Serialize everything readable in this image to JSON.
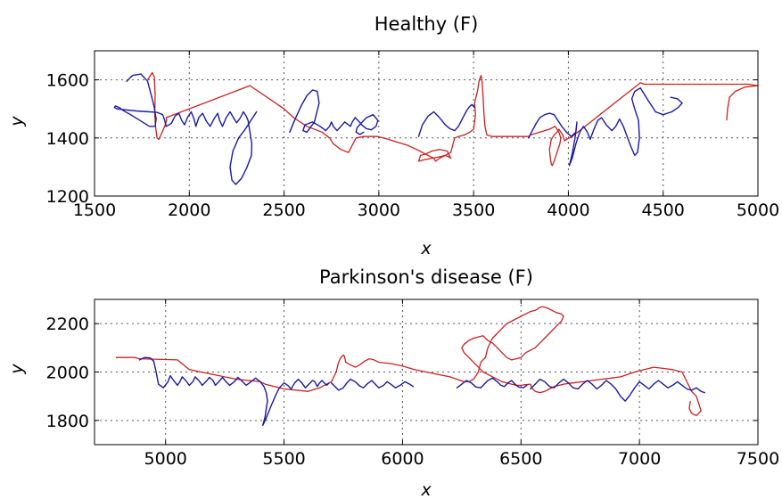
{
  "chart_data": [
    {
      "type": "line",
      "title": "Healthy (F)",
      "xlabel": "x",
      "ylabel": "y",
      "xlim": [
        1500,
        5000
      ],
      "ylim": [
        1200,
        1700
      ],
      "xticks": [
        1500,
        2000,
        2500,
        3000,
        3500,
        4000,
        4500,
        5000
      ],
      "yticks": [
        1200,
        1400,
        1600
      ],
      "grid": true,
      "series": [
        {
          "color": "#1a1aa6",
          "pen": "down",
          "x": [
            1670,
            1700,
            1745,
            1780,
            1800,
            1815,
            1825,
            1820,
            1790,
            1740,
            1690,
            1650,
            1630,
            1610,
            1605,
            1620,
            1660,
            1720,
            1790,
            1830,
            1860,
            1870,
            1878,
            1905,
            1925,
            1945,
            1960,
            1975,
            1990,
            2010,
            2025,
            2035,
            2050,
            2070,
            2090,
            2110,
            2130,
            2150,
            2160,
            2175,
            2195,
            2215,
            2235,
            2250,
            2270,
            2285,
            2300,
            2310,
            2320,
            2330,
            2328,
            2305,
            2275,
            2245,
            2225,
            2215,
            2230,
            2260,
            2290,
            2310,
            2330,
            2345,
            2355
          ],
          "y": [
            1595,
            1615,
            1620,
            1595,
            1545,
            1505,
            1465,
            1440,
            1440,
            1460,
            1480,
            1495,
            1505,
            1510,
            1505,
            1500,
            1497,
            1493,
            1490,
            1488,
            1480,
            1460,
            1440,
            1450,
            1475,
            1485,
            1460,
            1445,
            1470,
            1490,
            1465,
            1440,
            1470,
            1485,
            1458,
            1440,
            1465,
            1485,
            1460,
            1440,
            1470,
            1490,
            1468,
            1452,
            1470,
            1490,
            1475,
            1460,
            1420,
            1380,
            1340,
            1300,
            1260,
            1240,
            1255,
            1300,
            1355,
            1400,
            1425,
            1445,
            1465,
            1480,
            1490
          ]
        },
        {
          "color": "#1a1aa6",
          "pen": "down",
          "x": [
            2530,
            2555,
            2590,
            2620,
            2650,
            2675,
            2685,
            2660,
            2620,
            2600,
            2610,
            2650,
            2690,
            2720,
            2740,
            2750,
            2760,
            2780,
            2800,
            2820,
            2840,
            2850,
            2860,
            2875,
            2890,
            2910,
            2935,
            2960,
            2985,
            2995,
            2970,
            2935,
            2905,
            2885,
            2880,
            2900,
            2920
          ],
          "y": [
            1420,
            1460,
            1510,
            1545,
            1565,
            1560,
            1520,
            1455,
            1420,
            1425,
            1445,
            1455,
            1440,
            1425,
            1440,
            1455,
            1440,
            1425,
            1440,
            1455,
            1445,
            1440,
            1455,
            1470,
            1460,
            1445,
            1432,
            1428,
            1440,
            1460,
            1480,
            1470,
            1450,
            1435,
            1420,
            1412,
            1420
          ]
        },
        {
          "color": "#1a1aa6",
          "pen": "down",
          "x": [
            3210,
            3230,
            3260,
            3290,
            3320,
            3350,
            3375,
            3400,
            3420,
            3440,
            3460,
            3475,
            3490,
            3505
          ],
          "y": [
            1405,
            1445,
            1475,
            1490,
            1470,
            1445,
            1432,
            1425,
            1440,
            1465,
            1490,
            1505,
            1515,
            1505
          ]
        },
        {
          "color": "#1a1aa6",
          "pen": "down",
          "x": [
            3790,
            3810,
            3830,
            3850,
            3875,
            3900,
            3925,
            3945,
            3965,
            3990,
            4015,
            4040,
            4045,
            4035,
            4020,
            4005,
            4020,
            4040,
            4060,
            4080,
            4100,
            4115,
            4135,
            4155,
            4175,
            4200,
            4230,
            4250,
            4270,
            4290,
            4310,
            4330,
            4350,
            4365,
            4375,
            4370,
            4350,
            4335,
            4350,
            4380,
            4420,
            4460,
            4500,
            4545,
            4580,
            4600,
            4575,
            4540
          ],
          "y": [
            1400,
            1425,
            1450,
            1470,
            1480,
            1485,
            1480,
            1460,
            1440,
            1420,
            1405,
            1420,
            1455,
            1400,
            1345,
            1305,
            1330,
            1380,
            1420,
            1440,
            1420,
            1395,
            1430,
            1460,
            1470,
            1445,
            1425,
            1440,
            1465,
            1440,
            1405,
            1370,
            1340,
            1350,
            1400,
            1460,
            1500,
            1535,
            1560,
            1572,
            1530,
            1490,
            1480,
            1490,
            1505,
            1520,
            1535,
            1540
          ]
        }
      ]
    },
    {
      "type": "line",
      "title": "Parkinson's disease (F)",
      "xlabel": "x",
      "ylabel": "y",
      "xlim": [
        4700,
        7500
      ],
      "ylim": [
        1700,
        2300
      ],
      "xticks": [
        5000,
        5500,
        6000,
        6500,
        7000,
        7500
      ],
      "yticks": [
        1800,
        2000,
        2200
      ],
      "grid": true,
      "series": [
        {
          "color": "#1a1aa6",
          "pen": "down",
          "x": [
            4890,
            4910,
            4935,
            4950,
            4960,
            4970,
            4990,
            5010,
            5020,
            5030,
            5050,
            5060,
            5070,
            5085,
            5100,
            5115,
            5125,
            5140,
            5155,
            5170,
            5185,
            5200,
            5210,
            5225,
            5240,
            5255,
            5270,
            5290,
            5305,
            5320,
            5340,
            5360,
            5380,
            5400,
            5415,
            5425,
            5430,
            5425,
            5420,
            5410,
            5425,
            5445,
            5465,
            5480,
            5500,
            5515,
            5530,
            5545,
            5560,
            5575,
            5590,
            5605,
            5620,
            5630,
            5640,
            5650,
            5660,
            5670,
            5680,
            5690
          ],
          "y": [
            2050,
            2060,
            2058,
            2045,
            2000,
            1950,
            1935,
            1960,
            1985,
            1970,
            1945,
            1960,
            1980,
            1965,
            1945,
            1960,
            1980,
            1965,
            1945,
            1960,
            1978,
            1965,
            1945,
            1960,
            1978,
            1960,
            1945,
            1960,
            1978,
            1965,
            1945,
            1960,
            1975,
            1960,
            1940,
            1915,
            1880,
            1850,
            1815,
            1780,
            1810,
            1860,
            1905,
            1935,
            1955,
            1945,
            1930,
            1955,
            1970,
            1955,
            1935,
            1950,
            1965,
            1960,
            1940,
            1955,
            1965,
            1955,
            1945,
            1955
          ]
        },
        {
          "color": "#1a1aa6",
          "pen": "down",
          "x": [
            5700,
            5715,
            5730,
            5750,
            5765,
            5780,
            5800,
            5820,
            5835,
            5850,
            5870,
            5885,
            5900,
            5920,
            5935,
            5950,
            5970,
            5990,
            6010,
            6030,
            6045
          ],
          "y": [
            1955,
            1940,
            1925,
            1935,
            1955,
            1970,
            1960,
            1942,
            1935,
            1950,
            1965,
            1950,
            1935,
            1945,
            1960,
            1950,
            1935,
            1945,
            1960,
            1950,
            1940
          ]
        },
        {
          "color": "#1a1aa6",
          "pen": "down",
          "x": [
            6230,
            6250,
            6270,
            6290,
            6310,
            6330,
            6345,
            6360,
            6380,
            6400,
            6415,
            6430,
            6445,
            6460,
            6475,
            6490,
            6510,
            6525
          ],
          "y": [
            1935,
            1950,
            1965,
            1955,
            1938,
            1935,
            1950,
            1965,
            1975,
            1960,
            1945,
            1940,
            1955,
            1965,
            1950,
            1938,
            1935,
            1945
          ]
        },
        {
          "color": "#1a1aa6",
          "pen": "down",
          "x": [
            6540,
            6560,
            6580,
            6600,
            6620,
            6640,
            6660,
            6680,
            6700,
            6720,
            6740,
            6760,
            6780,
            6800,
            6820,
            6840,
            6860,
            6880,
            6900,
            6920,
            6940,
            6960,
            6980,
            7000,
            7020,
            7040,
            7060,
            7080,
            7100,
            7120,
            7140,
            7160,
            7180,
            7200,
            7220,
            7240,
            7260,
            7275
          ],
          "y": [
            1930,
            1950,
            1970,
            1960,
            1940,
            1935,
            1955,
            1970,
            1955,
            1935,
            1930,
            1950,
            1965,
            1950,
            1930,
            1945,
            1965,
            1950,
            1930,
            1900,
            1880,
            1905,
            1935,
            1960,
            1945,
            1930,
            1950,
            1965,
            1950,
            1935,
            1945,
            1960,
            1945,
            1930,
            1925,
            1935,
            1920,
            1915
          ]
        }
      ]
    }
  ],
  "pen_up_strokes": [
    {
      "chart": 0,
      "color": "#cc2020",
      "x": [
        1780,
        1805,
        1815,
        1820,
        1818,
        1822,
        1830,
        1840,
        1850,
        1870,
        1880,
        1878,
        2320,
        2500,
        2550,
        2620,
        2700,
        2740,
        2760,
        2780,
        2800,
        2840,
        2880,
        2920,
        2995,
        3050,
        3100,
        3150,
        3200,
        3230,
        3260,
        3290,
        3300,
        3320,
        3350,
        3370,
        3380,
        3360,
        3320,
        3280,
        3250,
        3220,
        3210,
        3240,
        3280,
        3320,
        3350,
        3380,
        3400,
        3420,
        3450,
        3480,
        3500,
        3510,
        3505,
        3520,
        3530,
        3540,
        3545,
        3550,
        3555,
        3560,
        3570,
        3600,
        3650,
        3700,
        3750,
        3790,
        3800,
        3850,
        3900,
        3930,
        3950,
        3960,
        3955,
        3945,
        3935,
        3925,
        3915,
        3910,
        3905,
        3900,
        3910,
        3925,
        3940,
        3950,
        3960,
        3970,
        3975,
        3980,
        3990,
        4005,
        4020,
        4380,
        4400,
        4450,
        4500,
        4600,
        4700,
        4800,
        4850,
        4900,
        4950,
        5000,
        4930,
        4880,
        4850,
        4840,
        4835
      ],
      "y": [
        1600,
        1625,
        1610,
        1550,
        1480,
        1440,
        1400,
        1395,
        1410,
        1440,
        1460,
        1470,
        1580,
        1500,
        1470,
        1440,
        1420,
        1400,
        1380,
        1370,
        1360,
        1350,
        1400,
        1405,
        1405,
        1395,
        1385,
        1375,
        1360,
        1350,
        1340,
        1330,
        1320,
        1330,
        1340,
        1335,
        1330,
        1355,
        1360,
        1355,
        1345,
        1340,
        1320,
        1325,
        1330,
        1335,
        1340,
        1350,
        1400,
        1405,
        1410,
        1420,
        1430,
        1480,
        1520,
        1560,
        1600,
        1615,
        1590,
        1540,
        1480,
        1440,
        1410,
        1405,
        1405,
        1405,
        1405,
        1405,
        1410,
        1420,
        1430,
        1440,
        1420,
        1400,
        1380,
        1360,
        1340,
        1320,
        1305,
        1310,
        1330,
        1360,
        1395,
        1410,
        1420,
        1430,
        1420,
        1410,
        1400,
        1390,
        1395,
        1400,
        1405,
        1590,
        1585,
        1585,
        1585,
        1585,
        1585,
        1585,
        1585,
        1585,
        1585,
        1580,
        1575,
        1560,
        1540,
        1500,
        1460
      ]
    },
    {
      "chart": 1,
      "color": "#cc2020",
      "x": [
        4790,
        4870,
        4890,
        5050,
        5100,
        5200,
        5300,
        5400,
        5420,
        5500,
        5600,
        5650,
        5700,
        5720,
        5730,
        5740,
        5750,
        5755,
        5760,
        5780,
        5800,
        5820,
        5840,
        5860,
        5880,
        5900,
        5950,
        6000,
        6050,
        6100,
        6150,
        6200,
        6230,
        6260,
        6280,
        6300,
        6320,
        6330,
        6350,
        6360,
        6380,
        6400,
        6420,
        6440,
        6460,
        6480,
        6500,
        6520,
        6540,
        6560,
        6570,
        6575,
        6590,
        6610,
        6630,
        6650,
        6670,
        6680,
        6670,
        6650,
        6620,
        6600,
        6580,
        6560,
        6540,
        6520,
        6500,
        6480,
        6460,
        6440,
        6420,
        6400,
        6380,
        6360,
        6350,
        6340,
        6320,
        6300,
        6280,
        6260,
        6250,
        6260,
        6280,
        6300,
        6320,
        6340,
        6360,
        6380,
        6400,
        6420,
        6440,
        6460,
        6480,
        6500,
        6520,
        6540,
        6545,
        6560,
        6580,
        6600,
        6620,
        6640,
        6680,
        6720,
        6760,
        6800,
        6840,
        6880,
        6920,
        6950,
        6980,
        7020,
        7060,
        7100,
        7140,
        7180,
        7200,
        7220,
        7240,
        7250,
        7260,
        7240,
        7220,
        7210,
        7215
      ],
      "y": [
        2060,
        2060,
        2055,
        2050,
        2010,
        1990,
        1970,
        1960,
        1950,
        1930,
        1920,
        1935,
        1960,
        2000,
        2040,
        2060,
        2070,
        2065,
        2040,
        2030,
        2020,
        2030,
        2045,
        2055,
        2050,
        2040,
        2035,
        2025,
        2010,
        2000,
        1990,
        1980,
        1970,
        1960,
        1960,
        1970,
        2000,
        2040,
        2060,
        2100,
        2140,
        2160,
        2180,
        2200,
        2210,
        2220,
        2230,
        2240,
        2250,
        2255,
        2260,
        2265,
        2270,
        2265,
        2255,
        2245,
        2240,
        2230,
        2210,
        2190,
        2160,
        2140,
        2120,
        2100,
        2090,
        2080,
        2060,
        2055,
        2050,
        2060,
        2080,
        2100,
        2120,
        2130,
        2140,
        2150,
        2145,
        2140,
        2130,
        2115,
        2100,
        2080,
        2060,
        2040,
        2020,
        2000,
        1990,
        1980,
        1970,
        1960,
        1955,
        1950,
        1945,
        1945,
        1948,
        1950,
        1935,
        1920,
        1915,
        1920,
        1930,
        1940,
        1950,
        1955,
        1960,
        1965,
        1970,
        1975,
        1980,
        1990,
        2000,
        2010,
        2020,
        2015,
        2010,
        2000,
        1960,
        1920,
        1900,
        1870,
        1840,
        1820,
        1830,
        1850,
        1880
      ]
    }
  ]
}
